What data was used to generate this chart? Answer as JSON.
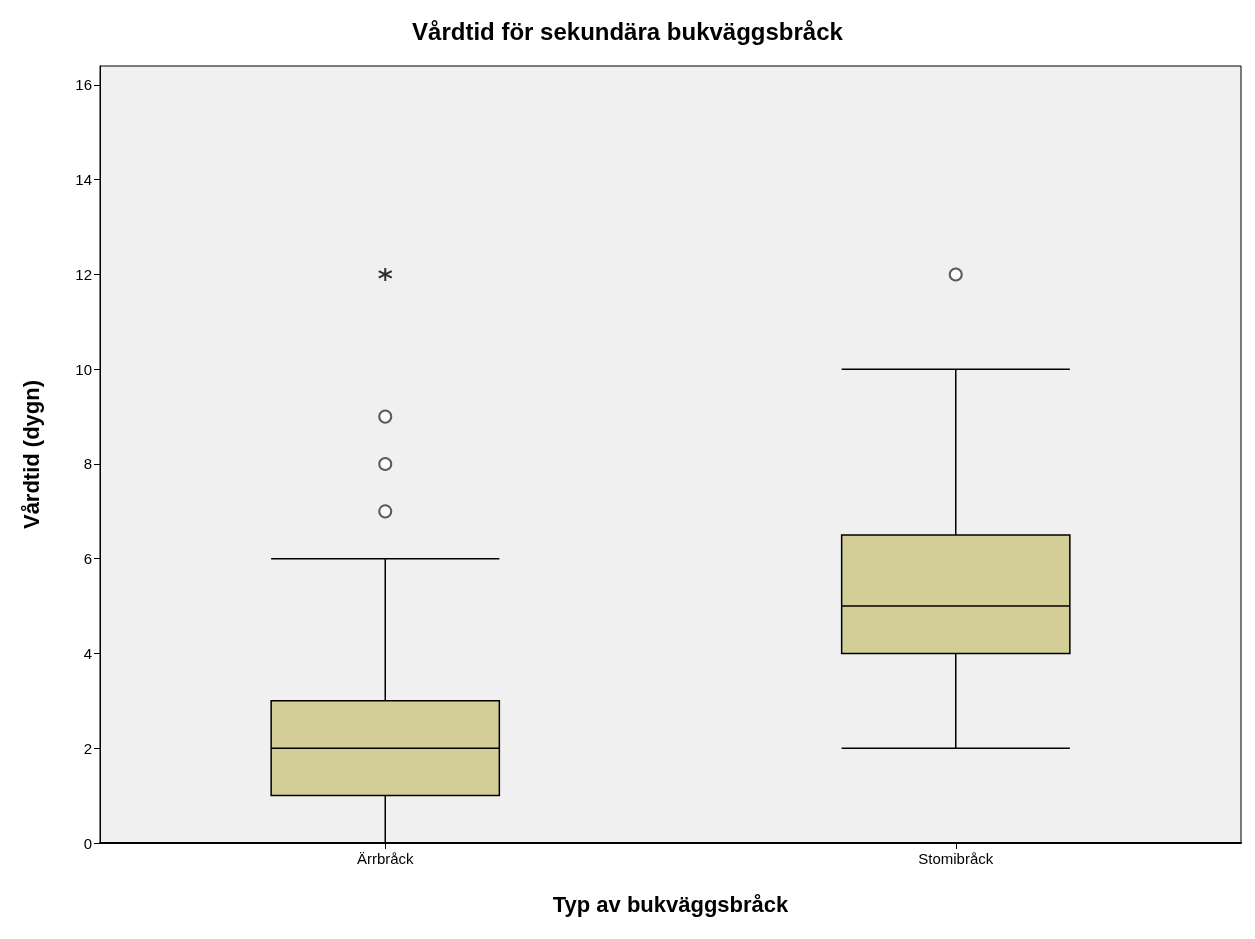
{
  "chart_data": {
    "type": "box",
    "title": "Vårdtid för sekundära bukväggsbråck",
    "xlabel": "Typ av bukväggsbråck",
    "ylabel": "Vårdtid (dygn)",
    "categories": [
      "Ärrbråck",
      "Stomibråck"
    ],
    "color": "#d3ce97",
    "boxes": [
      {
        "low": 0,
        "q1": 1,
        "median": 2,
        "q3": 3,
        "high": 6,
        "outliers": [
          7,
          8,
          9,
          12
        ]
      },
      {
        "low": 2,
        "q1": 4,
        "median": 5,
        "q3": 6.5,
        "high": 10,
        "outliers": [
          12
        ]
      }
    ],
    "ylim": [
      0,
      16.4
    ],
    "yticks": [
      0,
      2,
      4,
      6,
      8,
      10,
      12,
      14,
      16
    ],
    "grid": false
  }
}
